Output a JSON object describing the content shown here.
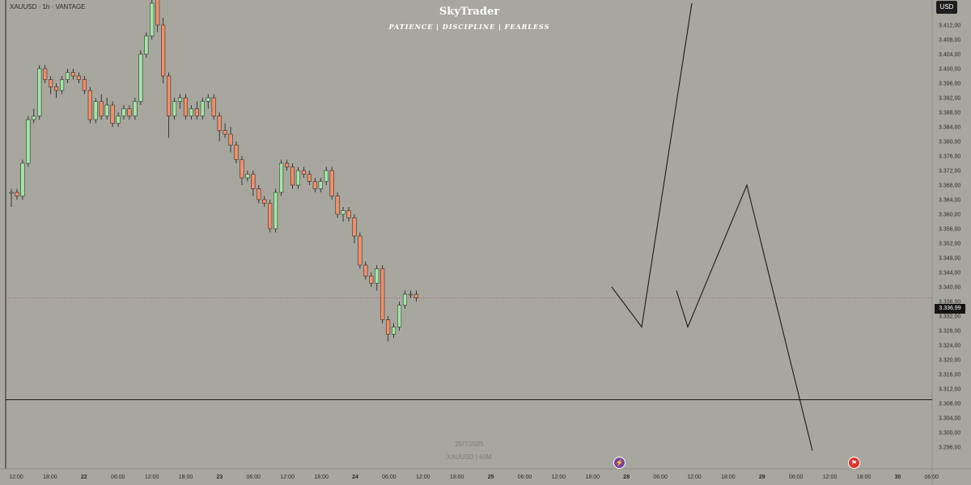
{
  "header": {
    "symbol_line": "XAUUSD · 1h · VANTAGE",
    "brand": "SkyTrader",
    "motto": "PATIENCE  |  DISCIPLINE  |  FEARLESS"
  },
  "currency_button": "USD",
  "current_price_label": "3.336,99",
  "watermark": {
    "date": "25/7/2025",
    "symbol_tf": "XAUUSD | 60M"
  },
  "icons": {
    "economic_event": "lightning-icon",
    "us_event": "us-flag-icon"
  },
  "colors": {
    "background": "#a8a79f",
    "bull": "#a3e4a5",
    "bear": "#f0906b",
    "line": "#1a1a1a",
    "price_line": "#b04a7a"
  },
  "chart_data": {
    "type": "candlestick",
    "y_range": [
      3294,
      3418
    ],
    "y_ticks": [
      "3.412,00",
      "3.408,00",
      "3.404,00",
      "3.400,00",
      "3.396,00",
      "3.392,00",
      "3.388,00",
      "3.384,00",
      "3.380,00",
      "3.376,00",
      "3.372,00",
      "3.368,00",
      "3.364,00",
      "3.360,00",
      "3.356,00",
      "3.352,00",
      "3.348,00",
      "3.344,00",
      "3.340,00",
      "3.336,00",
      "3.332,00",
      "3.328,00",
      "3.324,00",
      "3.320,00",
      "3.316,00",
      "3.312,00",
      "3.308,00",
      "3.304,00",
      "3.300,00",
      "3.296,00"
    ],
    "x_tick_labels": [
      "12:00",
      "18:00",
      "22",
      "06:00",
      "12:00",
      "18:00",
      "23",
      "06:00",
      "12:00",
      "18:00",
      "24",
      "06:00",
      "12:00",
      "18:00",
      "25",
      "06:00",
      "12:00",
      "18:00",
      "28",
      "06:00",
      "12:00",
      "18:00",
      "29",
      "06:00",
      "12:00",
      "18:00",
      "30",
      "06:00"
    ],
    "current_price": 3336.99,
    "support_level": 3309.0,
    "candles": [
      [
        3366,
        3367,
        3362,
        3366
      ],
      [
        3366,
        3367,
        3364,
        3365
      ],
      [
        3365,
        3375,
        3364,
        3374
      ],
      [
        3374,
        3387,
        3373,
        3386
      ],
      [
        3386,
        3389,
        3385,
        3387
      ],
      [
        3387,
        3401,
        3386,
        3400
      ],
      [
        3400,
        3401,
        3396,
        3397
      ],
      [
        3397,
        3398,
        3393,
        3395
      ],
      [
        3395,
        3396,
        3392,
        3394
      ],
      [
        3394,
        3398,
        3393,
        3397
      ],
      [
        3397,
        3400,
        3396,
        3399
      ],
      [
        3399,
        3400,
        3397,
        3398
      ],
      [
        3398,
        3399,
        3396,
        3397
      ],
      [
        3397,
        3398,
        3393,
        3394
      ],
      [
        3394,
        3395,
        3385,
        3386
      ],
      [
        3386,
        3392,
        3385,
        3391
      ],
      [
        3391,
        3393,
        3386,
        3387
      ],
      [
        3387,
        3392,
        3386,
        3390
      ],
      [
        3390,
        3391,
        3384,
        3385
      ],
      [
        3385,
        3388,
        3384,
        3387
      ],
      [
        3387,
        3390,
        3386,
        3389
      ],
      [
        3389,
        3390,
        3386,
        3387
      ],
      [
        3387,
        3392,
        3386,
        3391
      ],
      [
        3391,
        3405,
        3390,
        3404
      ],
      [
        3404,
        3410,
        3403,
        3409
      ],
      [
        3409,
        3419,
        3408,
        3418
      ],
      [
        3419,
        3420,
        3410,
        3412
      ],
      [
        3412,
        3414,
        3396,
        3398
      ],
      [
        3398,
        3399,
        3381,
        3387
      ],
      [
        3387,
        3392,
        3386,
        3391
      ],
      [
        3391,
        3393,
        3389,
        3392
      ],
      [
        3392,
        3393,
        3386,
        3387
      ],
      [
        3387,
        3390,
        3386,
        3389
      ],
      [
        3389,
        3391,
        3386,
        3387
      ],
      [
        3387,
        3392,
        3386,
        3391
      ],
      [
        3391,
        3393,
        3389,
        3392
      ],
      [
        3392,
        3393,
        3386,
        3387
      ],
      [
        3387,
        3388,
        3380,
        3383
      ],
      [
        3383,
        3385,
        3381,
        3382
      ],
      [
        3382,
        3384,
        3377,
        3379
      ],
      [
        3379,
        3380,
        3374,
        3375
      ],
      [
        3375,
        3376,
        3368,
        3370
      ],
      [
        3370,
        3372,
        3369,
        3371
      ],
      [
        3371,
        3372,
        3365,
        3367
      ],
      [
        3367,
        3368,
        3363,
        3364
      ],
      [
        3364,
        3365,
        3362,
        3363
      ],
      [
        3363,
        3364,
        3355,
        3356
      ],
      [
        3356,
        3367,
        3355,
        3366
      ],
      [
        3366,
        3375,
        3365,
        3374
      ],
      [
        3374,
        3375,
        3372,
        3373
      ],
      [
        3373,
        3374,
        3367,
        3368
      ],
      [
        3368,
        3373,
        3367,
        3372
      ],
      [
        3372,
        3373,
        3370,
        3371
      ],
      [
        3371,
        3372,
        3368,
        3369
      ],
      [
        3369,
        3370,
        3366,
        3367
      ],
      [
        3367,
        3370,
        3366,
        3369
      ],
      [
        3369,
        3373,
        3368,
        3372
      ],
      [
        3372,
        3373,
        3364,
        3365
      ],
      [
        3365,
        3366,
        3359,
        3360
      ],
      [
        3360,
        3362,
        3358,
        3361
      ],
      [
        3361,
        3362,
        3358,
        3359
      ],
      [
        3359,
        3360,
        3352,
        3354
      ],
      [
        3354,
        3355,
        3345,
        3346
      ],
      [
        3346,
        3347,
        3342,
        3343
      ],
      [
        3343,
        3344,
        3340,
        3341
      ],
      [
        3341,
        3346,
        3339,
        3345
      ],
      [
        3345,
        3346,
        3330,
        3331
      ],
      [
        3331,
        3332,
        3325,
        3327
      ],
      [
        3327,
        3330,
        3326,
        3329
      ],
      [
        3329,
        3336,
        3328,
        3335
      ],
      [
        3335,
        3339,
        3334,
        3338
      ],
      [
        3338,
        3339,
        3337,
        3338
      ],
      [
        3338,
        3339,
        3336,
        3337
      ]
    ],
    "projection_path": [
      {
        "t": "28 02:00",
        "price": 3340
      },
      {
        "t": "28 05:30",
        "price": 3329
      },
      {
        "t": "28 10:30",
        "price": 3418
      }
    ],
    "projection_path_2": [
      {
        "t": "28 11:00",
        "price": 3339
      },
      {
        "t": "28 12:00",
        "price": 3329
      },
      {
        "t": "29 01:00",
        "price": 3368
      },
      {
        "t": "30 04:30",
        "price": 3295
      }
    ]
  }
}
